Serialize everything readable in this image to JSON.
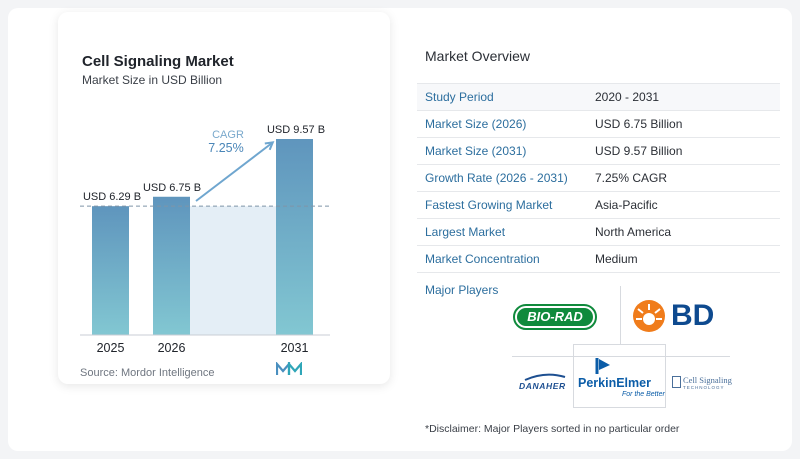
{
  "chart_data": {
    "type": "bar",
    "title": "Cell Signaling Market",
    "subtitle": "Market Size in USD Billion",
    "categories": [
      "2025",
      "2026",
      "2031"
    ],
    "values": [
      6.29,
      6.75,
      9.57
    ],
    "data_labels": [
      "USD 6.29 B",
      "USD 6.75 B",
      "USD 9.57 B"
    ],
    "cagr_label": "CAGR",
    "cagr_value": "7.25%",
    "colors": {
      "bar_top": "#5f95bd",
      "bar_bottom": "#82c7d2",
      "area": "#e4eef6",
      "arrow": "#6fa6cf",
      "reference_line": "#7f95a8"
    }
  },
  "source": "Source:  Mordor Intelligence",
  "overview": {
    "title": "Market Overview",
    "rows": [
      {
        "label": "Study Period",
        "value": "2020 - 2031"
      },
      {
        "label": "Market Size (2026)",
        "value": "USD 6.75 Billion"
      },
      {
        "label": "Market Size (2031)",
        "value": "USD 9.57 Billion"
      },
      {
        "label": "Growth Rate (2026 - 2031)",
        "value": "7.25% CAGR"
      },
      {
        "label": "Fastest Growing Market",
        "value": "Asia-Pacific"
      },
      {
        "label": "Largest Market",
        "value": "North America"
      },
      {
        "label": "Market Concentration",
        "value": "Medium"
      }
    ]
  },
  "players": {
    "title": "Major Players",
    "logos": {
      "biorad": "BIO-RAD",
      "bd": "BD",
      "danaher": "DANAHER",
      "perkinelmer": "PerkinElmer",
      "perkinelmer_tagline": "For the Better",
      "cst": "Cell Signaling",
      "cst_sub": "TECHNOLOGY"
    }
  },
  "disclaimer": "*Disclaimer: Major Players sorted in no particular order"
}
